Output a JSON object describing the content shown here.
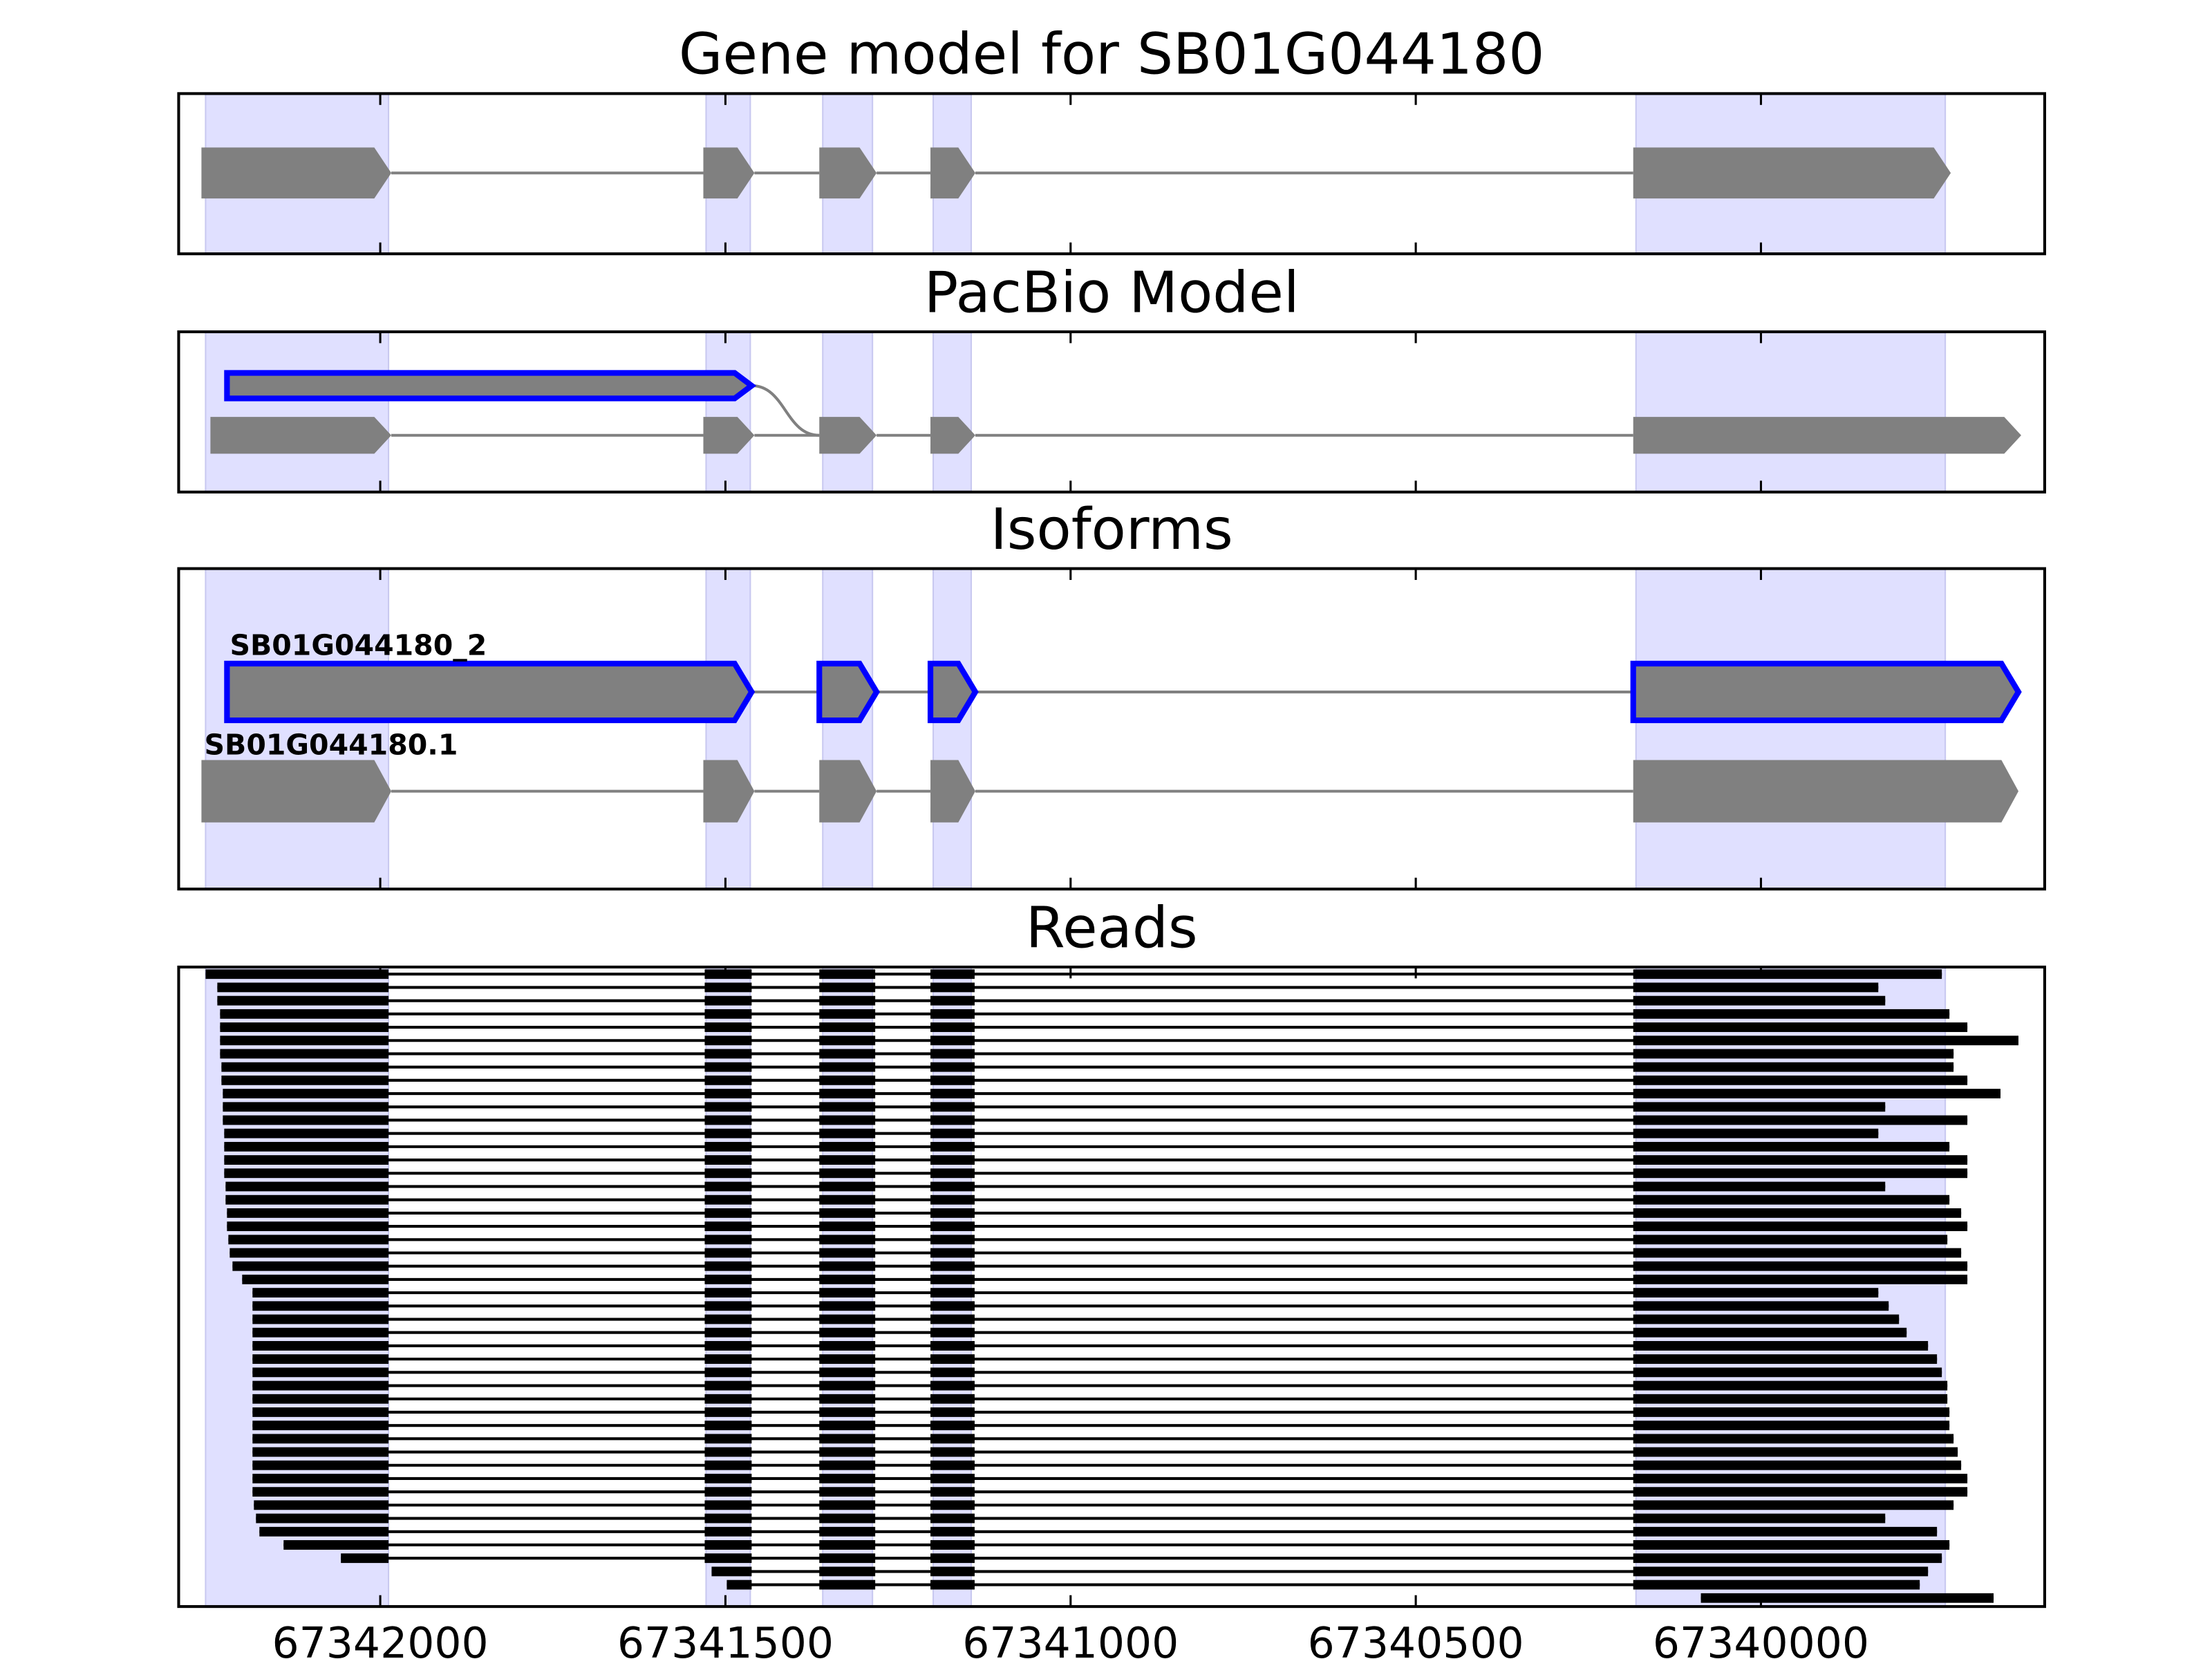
{
  "chart_data": [
    {
      "type": "gene-track",
      "title": "Gene model for SB01G044180",
      "xlim": [
        67342292,
        67339589
      ],
      "xticks": [
        67342000,
        67341500,
        67341000,
        67340500,
        67340000
      ],
      "bands": [
        [
          67342253,
          67341988
        ],
        [
          67341528,
          67341464
        ],
        [
          67341359,
          67341287
        ],
        [
          67341199,
          67341144
        ],
        [
          67340181,
          67339733
        ]
      ],
      "color": "#808080",
      "band_color": "#e0e0ff",
      "highlight_color": "#0000ff",
      "transcripts": [
        {
          "exons": [
            [
              67342259,
              67341984
            ],
            [
              67341532,
              67341458
            ],
            [
              67341364,
              67341281
            ],
            [
              67341203,
              67341138
            ],
            [
              67340185,
              67339725
            ]
          ],
          "lanes": [
            0,
            0,
            0,
            0,
            0
          ],
          "highlight": false
        }
      ]
    },
    {
      "type": "gene-track",
      "title": "PacBio Model",
      "xlim": [
        67342292,
        67339589
      ],
      "xticks": [
        67342000,
        67341500,
        67341000,
        67340500,
        67340000
      ],
      "bands": [
        [
          67342253,
          67341988
        ],
        [
          67341528,
          67341464
        ],
        [
          67341359,
          67341287
        ],
        [
          67341199,
          67341144
        ],
        [
          67340181,
          67339733
        ]
      ],
      "color": "#808080",
      "band_color": "#e0e0ff",
      "highlight_color": "#0000ff",
      "transcripts": [
        {
          "exons": [
            [
              67342246,
              67341984
            ],
            [
              67341532,
              67341458
            ],
            [
              67341364,
              67341281
            ],
            [
              67341203,
              67341138
            ],
            [
              67340185,
              67339623
            ]
          ],
          "lanes": [
            1,
            1,
            1,
            1,
            1
          ],
          "highlight": false
        },
        {
          "exons": [
            [
              67342222,
              67341462
            ],
            [
              67341364,
              67341281
            ]
          ],
          "lanes": [
            0,
            1
          ],
          "highlight": true
        }
      ]
    },
    {
      "type": "gene-track",
      "title": "Isoforms",
      "xlim": [
        67342292,
        67339589
      ],
      "xticks": [
        67342000,
        67341500,
        67341000,
        67340500,
        67340000
      ],
      "bands": [
        [
          67342253,
          67341988
        ],
        [
          67341528,
          67341464
        ],
        [
          67341359,
          67341287
        ],
        [
          67341199,
          67341144
        ],
        [
          67340181,
          67339733
        ]
      ],
      "color": "#808080",
      "band_color": "#e0e0ff",
      "highlight_color": "#0000ff",
      "transcripts": [
        {
          "name": "SB01G044180_2",
          "exons": [
            [
              67342222,
              67341462
            ],
            [
              67341364,
              67341281
            ],
            [
              67341203,
              67341138
            ],
            [
              67340185,
              67339627
            ]
          ],
          "lanes": [
            0,
            0,
            0,
            0
          ],
          "highlight": true
        },
        {
          "name": "SB01G044180.1",
          "exons": [
            [
              67342259,
              67341984
            ],
            [
              67341532,
              67341458
            ],
            [
              67341364,
              67341281
            ],
            [
              67341203,
              67341138
            ],
            [
              67340185,
              67339627
            ]
          ],
          "lanes": [
            1,
            1,
            1,
            1,
            1
          ],
          "highlight": false
        }
      ]
    },
    {
      "type": "reads",
      "title": "Reads",
      "xlim": [
        67342292,
        67339589
      ],
      "xticks": [
        67342000,
        67341500,
        67341000,
        67340500,
        67340000
      ],
      "bands": [
        [
          67342253,
          67341988
        ],
        [
          67341528,
          67341464
        ],
        [
          67341359,
          67341287
        ],
        [
          67341199,
          67341144
        ],
        [
          67340181,
          67339733
        ]
      ],
      "color": "#000000",
      "band_color": "#e0e0ff",
      "exons": [
        [
          67342260,
          67341988
        ],
        [
          67341530,
          67341462
        ],
        [
          67341364,
          67341283
        ],
        [
          67341203,
          67341139
        ],
        [
          67340185,
          67339600
        ]
      ],
      "reads": [
        [
          67342253,
          67339738
        ],
        [
          67342236,
          67339830
        ],
        [
          67342236,
          67339820
        ],
        [
          67342232,
          67339727
        ],
        [
          67342232,
          67339701
        ],
        [
          67342232,
          67339627
        ],
        [
          67342232,
          67339721
        ],
        [
          67342230,
          67339721
        ],
        [
          67342230,
          67339701
        ],
        [
          67342228,
          67339653
        ],
        [
          67342228,
          67339820
        ],
        [
          67342228,
          67339701
        ],
        [
          67342226,
          67339830
        ],
        [
          67342226,
          67339727
        ],
        [
          67342226,
          67339701
        ],
        [
          67342226,
          67339701
        ],
        [
          67342224,
          67339820
        ],
        [
          67342224,
          67339727
        ],
        [
          67342222,
          67339710
        ],
        [
          67342222,
          67339701
        ],
        [
          67342220,
          67339730
        ],
        [
          67342218,
          67339710
        ],
        [
          67342214,
          67339701
        ],
        [
          67342200,
          67339701
        ],
        [
          67342185,
          67339830
        ],
        [
          67342185,
          67339815
        ],
        [
          67342185,
          67339800
        ],
        [
          67342185,
          67339789
        ],
        [
          67342185,
          67339758
        ],
        [
          67342185,
          67339745
        ],
        [
          67342185,
          67339738
        ],
        [
          67342185,
          67339730
        ],
        [
          67342185,
          67339730
        ],
        [
          67342185,
          67339727
        ],
        [
          67342185,
          67339727
        ],
        [
          67342185,
          67339721
        ],
        [
          67342185,
          67339715
        ],
        [
          67342185,
          67339710
        ],
        [
          67342185,
          67339701
        ],
        [
          67342185,
          67339701
        ],
        [
          67342183,
          67339721
        ],
        [
          67342180,
          67339820
        ],
        [
          67342175,
          67339745
        ],
        [
          67342140,
          67339727
        ],
        [
          67342057,
          67339738
        ],
        [
          67341520,
          67339758
        ],
        [
          67341498,
          67339770
        ],
        [
          67340087,
          67339663
        ]
      ]
    }
  ]
}
